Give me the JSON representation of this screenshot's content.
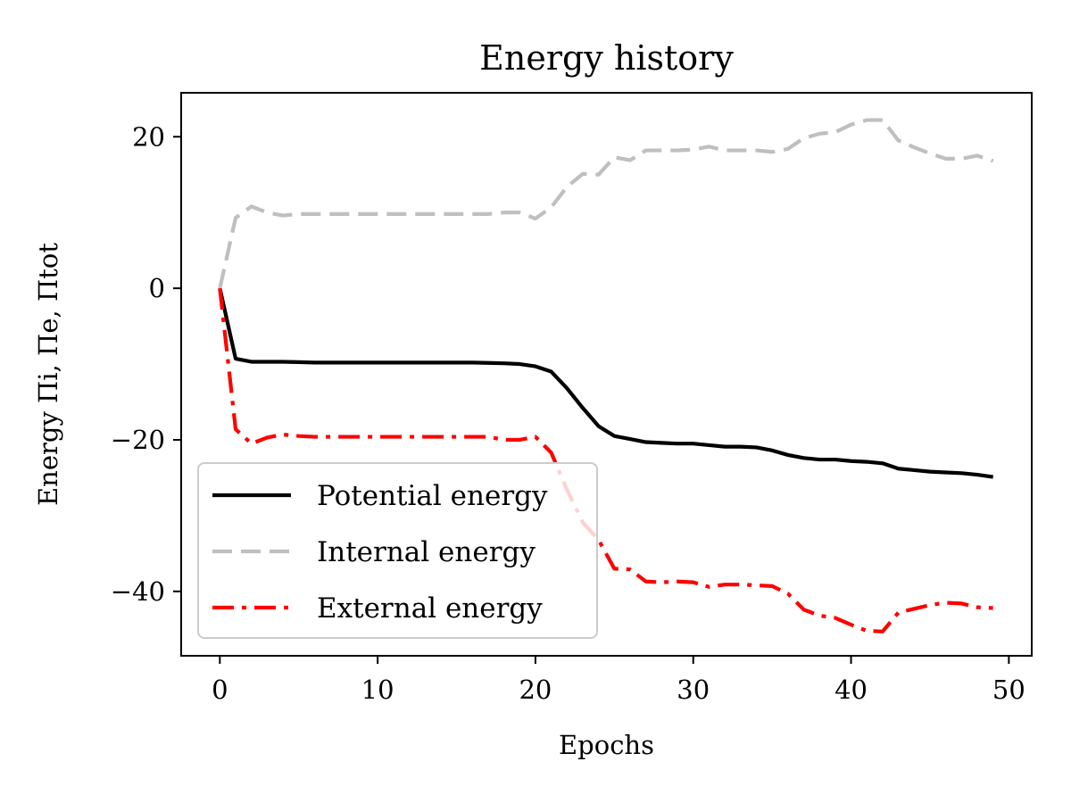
{
  "chart_data": {
    "type": "line",
    "title": "Energy history",
    "xlabel": "Epochs",
    "ylabel": "Energy Πi, Πe, Πtot",
    "xlim": [
      -2.45,
      51.45
    ],
    "ylim": [
      -48.5,
      25.8
    ],
    "xticks": [
      0,
      10,
      20,
      30,
      40,
      50
    ],
    "xtick_labels": [
      "0",
      "10",
      "20",
      "30",
      "40",
      "50"
    ],
    "yticks": [
      20,
      0,
      -20,
      -40
    ],
    "ytick_labels": [
      "20",
      "0",
      "−20",
      "−40"
    ],
    "grid": false,
    "legend_position": "lower-left",
    "x": [
      0,
      1,
      2,
      3,
      4,
      5,
      6,
      7,
      8,
      9,
      10,
      11,
      12,
      13,
      14,
      15,
      16,
      17,
      18,
      19,
      20,
      21,
      22,
      23,
      24,
      25,
      26,
      27,
      28,
      29,
      30,
      31,
      32,
      33,
      34,
      35,
      36,
      37,
      38,
      39,
      40,
      41,
      42,
      43,
      44,
      45,
      46,
      47,
      48,
      49
    ],
    "series": [
      {
        "name": "Potential energy",
        "color": "#000000",
        "dash": "solid",
        "values": [
          0,
          -9.3,
          -9.7,
          -9.7,
          -9.7,
          -9.75,
          -9.8,
          -9.8,
          -9.8,
          -9.8,
          -9.8,
          -9.8,
          -9.8,
          -9.8,
          -9.8,
          -9.8,
          -9.8,
          -9.85,
          -9.9,
          -10,
          -10.3,
          -11,
          -13.2,
          -15.8,
          -18.2,
          -19.5,
          -19.9,
          -20.3,
          -20.4,
          -20.5,
          -20.5,
          -20.7,
          -20.9,
          -20.9,
          -21,
          -21.4,
          -22,
          -22.4,
          -22.6,
          -22.6,
          -22.8,
          -22.9,
          -23.1,
          -23.8,
          -24,
          -24.2,
          -24.3,
          -24.4,
          -24.6,
          -24.9
        ]
      },
      {
        "name": "Internal energy",
        "color": "#bfbfbf",
        "dash": "dashed",
        "values": [
          0,
          9.3,
          10.8,
          10,
          9.6,
          9.8,
          9.8,
          9.8,
          9.8,
          9.8,
          9.8,
          9.8,
          9.8,
          9.8,
          9.8,
          9.8,
          9.8,
          9.8,
          10,
          10,
          9.2,
          10.7,
          13.4,
          15.1,
          15,
          17.3,
          16.9,
          18.2,
          18.2,
          18.2,
          18.3,
          18.7,
          18.2,
          18.2,
          18.2,
          18,
          18.4,
          19.8,
          20.4,
          20.6,
          21.6,
          22.2,
          22.2,
          19.5,
          18.6,
          17.8,
          17.1,
          17.1,
          17.5,
          16.8
        ]
      },
      {
        "name": "External energy",
        "color": "#ff0000",
        "dash": "dashdot",
        "values": [
          0,
          -18.6,
          -20.5,
          -19.7,
          -19.3,
          -19.5,
          -19.6,
          -19.6,
          -19.6,
          -19.6,
          -19.6,
          -19.6,
          -19.6,
          -19.6,
          -19.6,
          -19.6,
          -19.6,
          -19.6,
          -20,
          -20,
          -19.6,
          -21.7,
          -26.6,
          -30.9,
          -33.2,
          -37,
          -37.1,
          -38.7,
          -38.8,
          -38.7,
          -38.8,
          -39.4,
          -39.1,
          -39.1,
          -39.2,
          -39.3,
          -40.3,
          -42.4,
          -43.2,
          -43.5,
          -44.4,
          -45.2,
          -45.3,
          -42.8,
          -42.3,
          -41.8,
          -41.5,
          -41.6,
          -42.1,
          -42.2
        ]
      }
    ]
  }
}
